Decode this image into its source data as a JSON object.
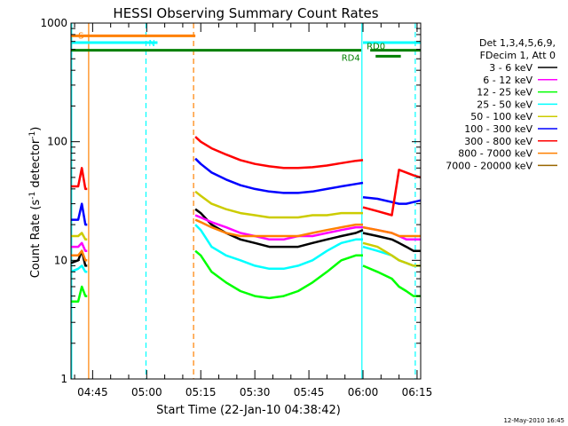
{
  "chart_data": {
    "type": "line",
    "title": "HESSI Observing Summary Count Rates",
    "xlabel": "Start Time (22-Jan-10 04:38:42)",
    "ylabel": "Count Rate (s⁻¹ detector⁻¹)",
    "x_range_min": [
      39,
      136
    ],
    "x_ticks": [
      "04:45",
      "05:00",
      "05:15",
      "05:30",
      "05:45",
      "06:00",
      "06:15"
    ],
    "x_tick_min": [
      45,
      60,
      75,
      90,
      105,
      120,
      135
    ],
    "ylim": [
      1,
      1000
    ],
    "y_scale": "log",
    "y_ticks": [
      "1",
      "10",
      "100",
      "1000"
    ],
    "y_tick_values": [
      1,
      10,
      100,
      1000
    ],
    "legend_header": [
      "Det 1,3,4,5,6,9,",
      "FDecim 1, Att 0"
    ],
    "legend_position": "right",
    "series": [
      {
        "name": "3 - 6 keV",
        "color": "#000000",
        "segments": [
          {
            "x": [
              39,
              41,
              42,
              43,
              43.5
            ],
            "y": [
              9.5,
              10,
              12,
              9,
              9
            ]
          },
          {
            "x": [
              73.5,
              75,
              78,
              82,
              86,
              90,
              94,
              98,
              102,
              106,
              110,
              114,
              118,
              120
            ],
            "y": [
              27,
              25,
              20,
              17,
              15,
              14,
              13,
              13,
              13,
              14,
              15,
              16,
              17,
              18
            ]
          },
          {
            "x": [
              120,
              124,
              128,
              130,
              132,
              134,
              136
            ],
            "y": [
              17,
              16,
              15,
              14,
              13,
              12,
              12
            ]
          }
        ]
      },
      {
        "name": "6 - 12 keV",
        "color": "#ff00ff",
        "segments": [
          {
            "x": [
              39,
              41,
              42,
              43,
              43.5
            ],
            "y": [
              13,
              13,
              14,
              12,
              12
            ]
          },
          {
            "x": [
              73.5,
              75,
              78,
              82,
              86,
              90,
              94,
              98,
              102,
              106,
              110,
              114,
              118,
              120
            ],
            "y": [
              24,
              23,
              21,
              19,
              17,
              16,
              15,
              15,
              16,
              16,
              17,
              18,
              19,
              19
            ]
          },
          {
            "x": [
              120,
              124,
              128,
              130,
              132,
              134,
              136
            ],
            "y": [
              19,
              18,
              17,
              16,
              15,
              15,
              15
            ]
          }
        ]
      },
      {
        "name": "12 - 25 keV",
        "color": "#00ff00",
        "segments": [
          {
            "x": [
              39,
              41,
              42,
              43,
              43.5
            ],
            "y": [
              4.5,
              4.5,
              6,
              5,
              5
            ]
          },
          {
            "x": [
              73.5,
              75,
              78,
              82,
              86,
              90,
              94,
              98,
              102,
              106,
              110,
              114,
              118,
              120
            ],
            "y": [
              12,
              11,
              8,
              6.5,
              5.5,
              5,
              4.8,
              5,
              5.5,
              6.5,
              8,
              10,
              11,
              11
            ]
          },
          {
            "x": [
              120,
              124,
              128,
              130,
              132,
              134,
              136
            ],
            "y": [
              9,
              8,
              7,
              6,
              5.5,
              5,
              5
            ]
          }
        ]
      },
      {
        "name": "25 - 50 keV",
        "color": "#00ffff",
        "segments": [
          {
            "x": [
              39,
              41,
              42,
              43,
              43.5
            ],
            "y": [
              8,
              8.5,
              9,
              8,
              8
            ]
          },
          {
            "x": [
              73.5,
              75,
              78,
              82,
              86,
              90,
              94,
              98,
              102,
              106,
              110,
              114,
              118,
              120
            ],
            "y": [
              20,
              18,
              13,
              11,
              10,
              9,
              8.5,
              8.5,
              9,
              10,
              12,
              14,
              15,
              15
            ]
          },
          {
            "x": [
              120,
              124,
              128,
              130,
              132,
              134,
              136
            ],
            "y": [
              13,
              12,
              11,
              10,
              9.5,
              9,
              9
            ]
          }
        ]
      },
      {
        "name": "50 - 100 keV",
        "color": "#cccc00",
        "segments": [
          {
            "x": [
              39,
              41,
              42,
              43,
              43.5
            ],
            "y": [
              16,
              16,
              17,
              15,
              15
            ]
          },
          {
            "x": [
              73.5,
              75,
              78,
              82,
              86,
              90,
              94,
              98,
              102,
              106,
              110,
              114,
              118,
              120
            ],
            "y": [
              38,
              35,
              30,
              27,
              25,
              24,
              23,
              23,
              23,
              24,
              24,
              25,
              25,
              25
            ]
          },
          {
            "x": [
              120,
              124,
              128,
              130,
              132,
              134,
              136
            ],
            "y": [
              14,
              13,
              11,
              10,
              9.5,
              9,
              9
            ]
          }
        ]
      },
      {
        "name": "100 - 300 keV",
        "color": "#0000ff",
        "segments": [
          {
            "x": [
              39,
              41,
              42,
              43,
              43.5
            ],
            "y": [
              22,
              22,
              30,
              20,
              20
            ]
          },
          {
            "x": [
              73.5,
              75,
              78,
              82,
              86,
              90,
              94,
              98,
              102,
              106,
              110,
              114,
              118,
              120
            ],
            "y": [
              72,
              65,
              55,
              48,
              43,
              40,
              38,
              37,
              37,
              38,
              40,
              42,
              44,
              45
            ]
          },
          {
            "x": [
              120,
              124,
              128,
              130,
              132,
              134,
              136
            ],
            "y": [
              34,
              33,
              31,
              30,
              30,
              31,
              32
            ]
          }
        ]
      },
      {
        "name": "300 - 800 keV",
        "color": "#ff0000",
        "segments": [
          {
            "x": [
              39,
              41,
              42,
              43,
              43.5
            ],
            "y": [
              42,
              42,
              60,
              40,
              40
            ]
          },
          {
            "x": [
              73.5,
              75,
              78,
              82,
              86,
              90,
              94,
              98,
              102,
              106,
              110,
              114,
              118,
              120
            ],
            "y": [
              110,
              100,
              88,
              78,
              70,
              65,
              62,
              60,
              60,
              61,
              63,
              66,
              69,
              70
            ]
          },
          {
            "x": [
              120,
              124,
              128,
              130,
              132,
              134,
              136
            ],
            "y": [
              28,
              26,
              24,
              58,
              55,
              52,
              50
            ]
          }
        ]
      },
      {
        "name": "800 - 7000 keV",
        "color": "#ff8000",
        "segments": [
          {
            "x": [
              39,
              41,
              42,
              43,
              43.5
            ],
            "y": [
              11,
              11,
              12,
              10,
              10
            ]
          },
          {
            "x": [
              73.5,
              75,
              78,
              82,
              86,
              90,
              94,
              98,
              102,
              106,
              110,
              114,
              118,
              120
            ],
            "y": [
              22,
              21,
              19,
              17,
              16,
              16,
              16,
              16,
              16,
              17,
              18,
              19,
              20,
              20
            ]
          },
          {
            "x": [
              120,
              124,
              128,
              130,
              132,
              134,
              136
            ],
            "y": [
              19,
              18,
              17,
              16,
              16,
              16,
              16
            ]
          }
        ]
      },
      {
        "name": "7000 - 20000 keV",
        "color": "#996600",
        "segments": []
      }
    ],
    "bars": {
      "S": {
        "label": "S",
        "color": "#ff8000",
        "x": [
          39,
          73.5
        ],
        "y": 780
      },
      "N": {
        "label": "N",
        "color": "#00ffff",
        "x": [
          [
            39,
            63
          ],
          [
            120,
            136
          ]
        ],
        "y": 685
      },
      "green": {
        "color": "#008000",
        "x": [
          [
            39,
            119.5
          ],
          [
            122,
            136
          ]
        ],
        "y": 590
      },
      "RD4": {
        "label": "RD4",
        "color": "#008000",
        "x": [
          123.5,
          130.5
        ],
        "y": 525
      },
      "RD0": {
        "label": "RD0"
      }
    },
    "vlines": [
      {
        "x": 39.2,
        "color": "#00ffff",
        "style": "solid"
      },
      {
        "x": 43.9,
        "color": "#ff8000",
        "style": "solid"
      },
      {
        "x": 59.8,
        "color": "#00ffff",
        "style": "dashed"
      },
      {
        "x": 73.0,
        "color": "#ff8000",
        "style": "dashed"
      },
      {
        "x": 119.7,
        "color": "#00ffff",
        "style": "solid"
      },
      {
        "x": 134.5,
        "color": "#00ffff",
        "style": "dashed"
      }
    ]
  },
  "footer": {
    "date": "12-May-2010 16:45"
  }
}
